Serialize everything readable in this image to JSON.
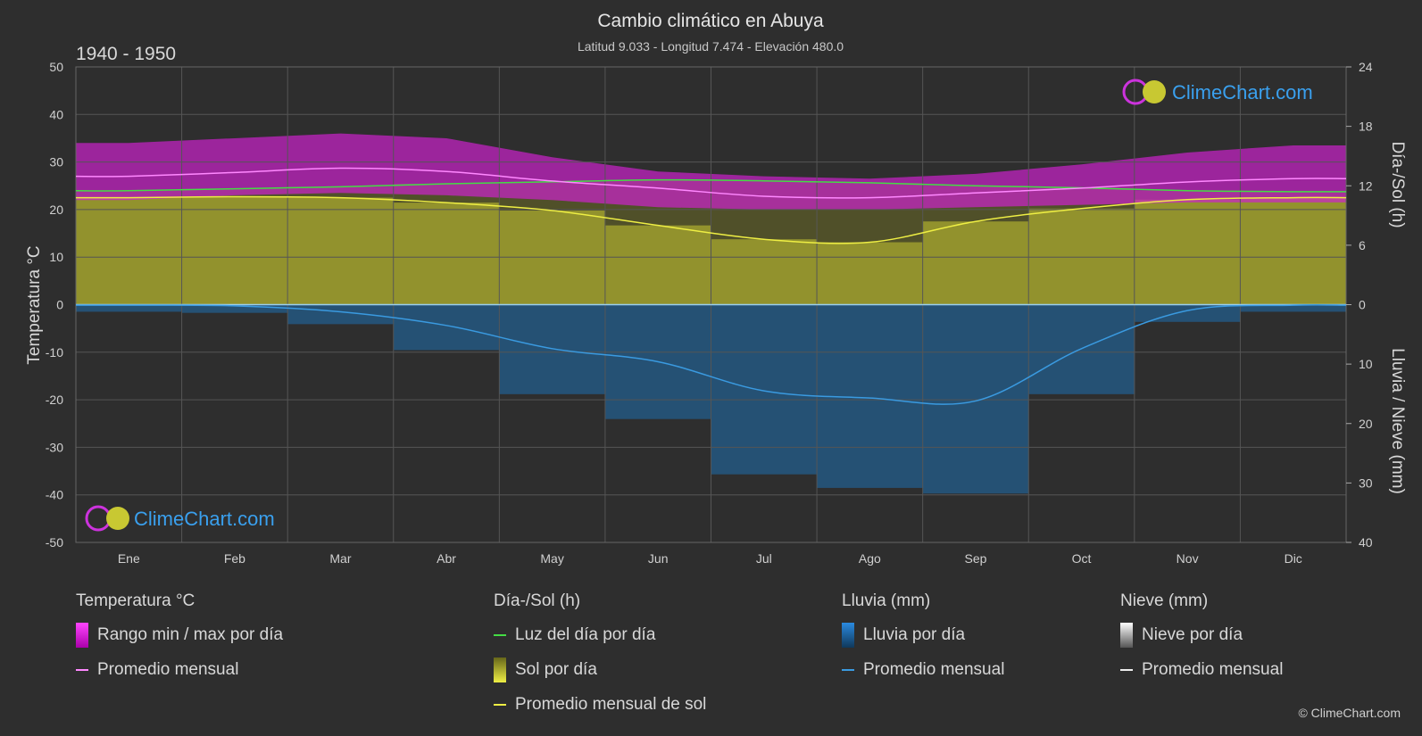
{
  "title": "Cambio climático en Abuya",
  "subtitle": "Latitud 9.033 - Longitud 7.474 - Elevación 480.0",
  "period": "1940 - 1950",
  "watermark": "ClimeChart.com",
  "copyright": "© ClimeChart.com",
  "axes": {
    "left_label": "Temperatura °C",
    "right_top_label": "Día-/Sol (h)",
    "right_bottom_label": "Lluvia / Nieve (mm)"
  },
  "legend": {
    "temperature": {
      "title": "Temperatura °C",
      "items": [
        "Rango min / max por día",
        "Promedio mensual"
      ]
    },
    "sun": {
      "title": "Día-/Sol (h)",
      "items": [
        "Luz del día por día",
        "Sol por día",
        "Promedio mensual de sol"
      ]
    },
    "rain": {
      "title": "Lluvia (mm)",
      "items": [
        "Lluvia por día",
        "Promedio mensual"
      ]
    },
    "snow": {
      "title": "Nieve (mm)",
      "items": [
        "Nieve por día",
        "Promedio mensual"
      ]
    }
  },
  "colors": {
    "temp_range": "#cc22cc",
    "temp_avg": "#ff88ff",
    "daylight": "#44dd44",
    "sunshine": "#c8c832",
    "sun_avg": "#eeee44",
    "rain": "#1f6fae",
    "rain_avg": "#3a9ae0",
    "snow": "#dddddd",
    "background": "#2e2e2e"
  },
  "chart_data": {
    "type": "area",
    "categories": [
      "Ene",
      "Feb",
      "Mar",
      "Abr",
      "May",
      "Jun",
      "Jul",
      "Ago",
      "Sep",
      "Oct",
      "Nov",
      "Dic"
    ],
    "y_left": {
      "range": [
        -50,
        50
      ],
      "ticks": [
        50,
        40,
        30,
        20,
        10,
        0,
        -10,
        -20,
        -30,
        -40,
        -50
      ]
    },
    "y_right_top": {
      "range": [
        0,
        24
      ],
      "ticks": [
        24,
        18,
        12,
        6,
        0
      ]
    },
    "y_right_bottom": {
      "range": [
        0,
        40
      ],
      "ticks": [
        0,
        10,
        20,
        30,
        40
      ]
    },
    "grid": true,
    "series": [
      {
        "name": "Rango min / max por día",
        "unit": "°C",
        "min": [
          22,
          23,
          23.5,
          23,
          22,
          20.5,
          20,
          20,
          20.5,
          21,
          21.5,
          21.5
        ],
        "max": [
          34,
          35,
          36,
          35,
          31,
          28,
          27,
          26.5,
          27.5,
          29.5,
          32,
          33.5
        ]
      },
      {
        "name": "Promedio mensual",
        "unit": "°C",
        "values": [
          27,
          27.8,
          28.7,
          28,
          26,
          24.5,
          22.8,
          22.5,
          23.5,
          24.5,
          25.8,
          26.5
        ]
      },
      {
        "name": "Luz del día por día",
        "unit": "h",
        "values": [
          11.5,
          11.7,
          11.9,
          12.2,
          12.4,
          12.6,
          12.5,
          12.3,
          12.0,
          11.8,
          11.5,
          11.4
        ]
      },
      {
        "name": "Promedio mensual de sol",
        "unit": "h",
        "values": [
          10.8,
          10.9,
          10.8,
          10.3,
          9.5,
          8.0,
          6.6,
          6.3,
          8.4,
          9.7,
          10.6,
          10.8
        ]
      },
      {
        "name": "Lluvia promedio mensual",
        "unit": "mm",
        "values": [
          0.1,
          0.2,
          1.2,
          3.5,
          7.4,
          9.6,
          14.5,
          15.7,
          16.2,
          7.4,
          1.0,
          0.1
        ]
      }
    ]
  }
}
